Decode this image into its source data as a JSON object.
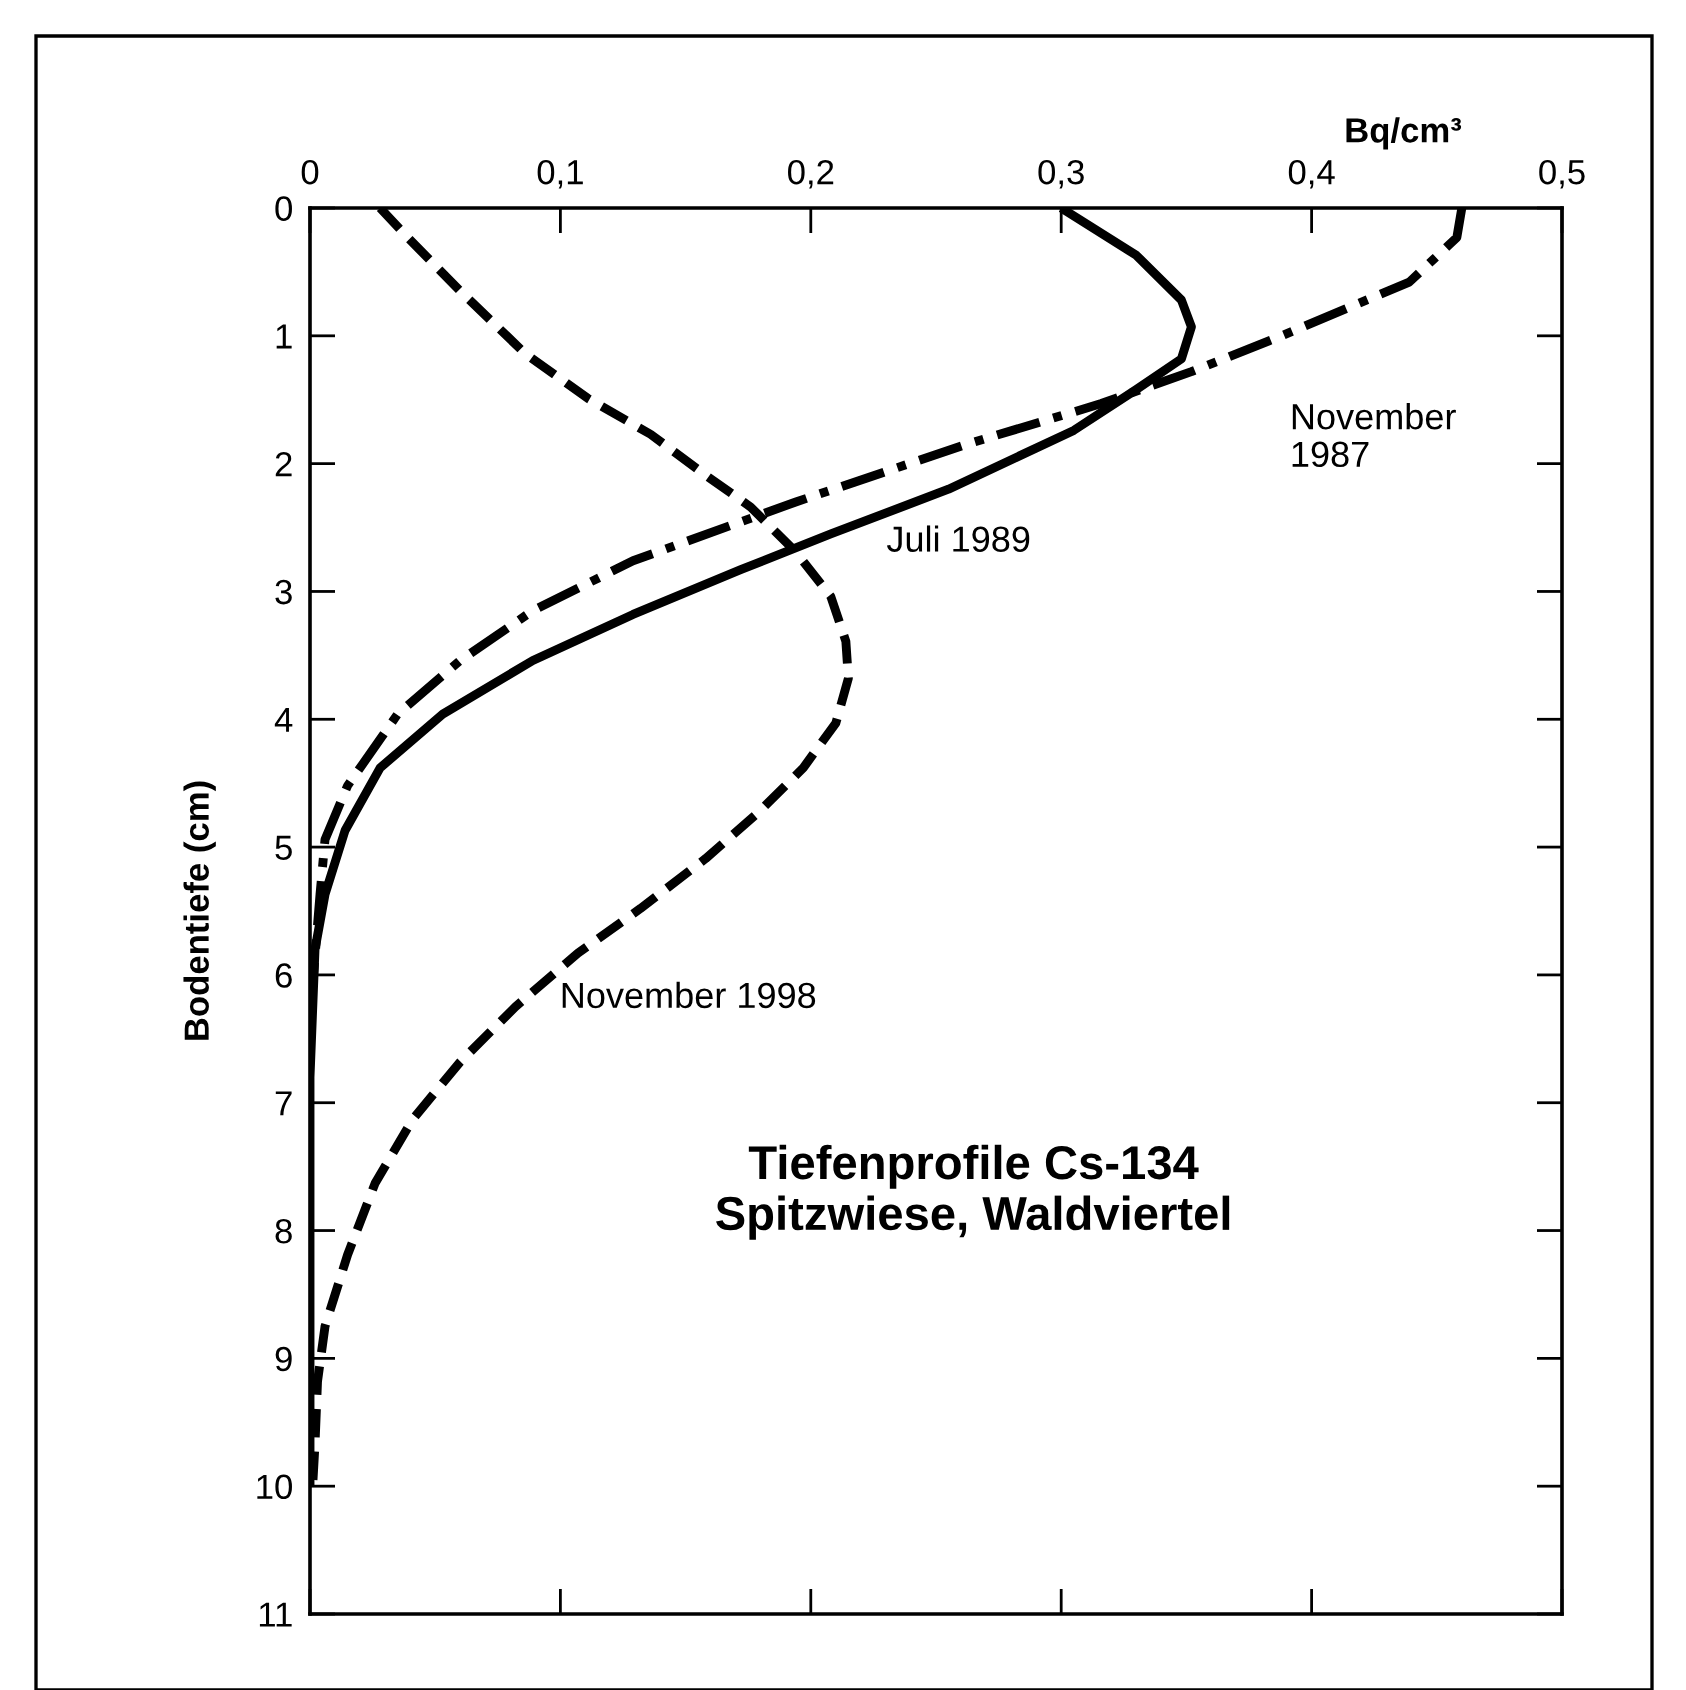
{
  "chart_data": {
    "type": "line",
    "title": "Tiefenprofile Cs-134\nSpitzwiese, Waldviertel",
    "xlabel": "Bq/cm³",
    "ylabel": "Bodentiefe (cm)",
    "xlim": [
      0,
      0.5
    ],
    "xticks": [
      0,
      {
        "value": 0.1,
        "label": "0,1"
      },
      {
        "value": 0.2,
        "label": "0,2"
      },
      {
        "value": 0.3,
        "label": "0,3"
      },
      {
        "value": 0.4,
        "label": "0,4"
      },
      {
        "value": 0.5,
        "label": "0,5"
      }
    ],
    "ylim": [
      11,
      0
    ],
    "yticks": [
      0,
      1,
      2,
      3,
      4,
      5,
      6,
      7,
      8,
      9,
      10,
      11
    ],
    "grid": false,
    "series": [
      {
        "name": "Juli 1989",
        "color": "#000000",
        "line_style": "solid",
        "x": [
          0.3,
          0.33,
          0.348,
          0.352,
          0.348,
          0.33,
          0.305,
          0.255,
          0.208,
          0.172,
          0.129,
          0.089,
          0.053,
          0.028,
          0.014,
          0.006,
          0.002,
          0,
          0
        ],
        "values": [
          0,
          0.37,
          0.72,
          0.93,
          1.18,
          1.42,
          1.74,
          2.2,
          2.55,
          2.83,
          3.18,
          3.54,
          3.96,
          4.38,
          4.87,
          5.37,
          5.8,
          6.8,
          10
        ]
      },
      {
        "name": "November\n1987",
        "color": "#000000",
        "line_style": "dashdot",
        "x": [
          0.46,
          0.458,
          0.439,
          0.388,
          0.352,
          0.316,
          0.262,
          0.194,
          0.129,
          0.089,
          0.06,
          0.035,
          0.015,
          0.006,
          0.004,
          0.001
        ],
        "values": [
          0,
          0.23,
          0.58,
          1.0,
          1.28,
          1.53,
          1.85,
          2.3,
          2.76,
          3.15,
          3.54,
          3.96,
          4.52,
          4.94,
          5.37,
          6.1
        ]
      },
      {
        "name": "November 1998",
        "color": "#000000",
        "line_style": "dashed",
        "x": [
          0.028,
          0.039,
          0.06,
          0.086,
          0.111,
          0.136,
          0.158,
          0.176,
          0.194,
          0.208,
          0.214,
          0.215,
          0.21,
          0.197,
          0.179,
          0.158,
          0.132,
          0.107,
          0.082,
          0.06,
          0.041,
          0.026,
          0.015,
          0.006,
          0.003,
          0.002,
          0.001
        ],
        "values": [
          0,
          0.23,
          0.65,
          1.14,
          1.49,
          1.77,
          2.09,
          2.34,
          2.69,
          3.04,
          3.39,
          3.68,
          4.03,
          4.38,
          4.73,
          5.09,
          5.48,
          5.83,
          6.25,
          6.68,
          7.13,
          7.63,
          8.19,
          8.75,
          9.18,
          9.67,
          10.02
        ]
      }
    ]
  }
}
